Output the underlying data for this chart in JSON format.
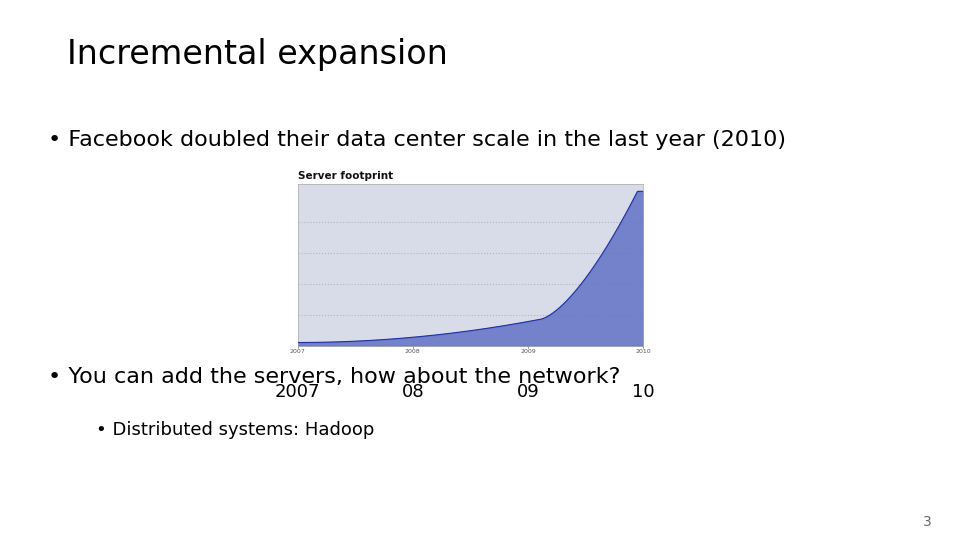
{
  "title": "Incremental expansion",
  "bullet1": "Facebook doubled their data center scale in the last year (2010)",
  "bullet2": "You can add the servers, how about the network?",
  "sub_bullet": "Distributed systems: Hadoop",
  "chart_title": "Server footprint",
  "chart_x_labels": [
    "2007",
    "08",
    "09",
    "10"
  ],
  "background_color": "#ffffff",
  "text_color": "#000000",
  "chart_fill_color": "#6878c8",
  "chart_line_color": "#2030a0",
  "chart_bg_color": "#d8dce8",
  "page_number": "3",
  "title_fontsize": 24,
  "bullet_fontsize": 16,
  "sub_bullet_fontsize": 13
}
